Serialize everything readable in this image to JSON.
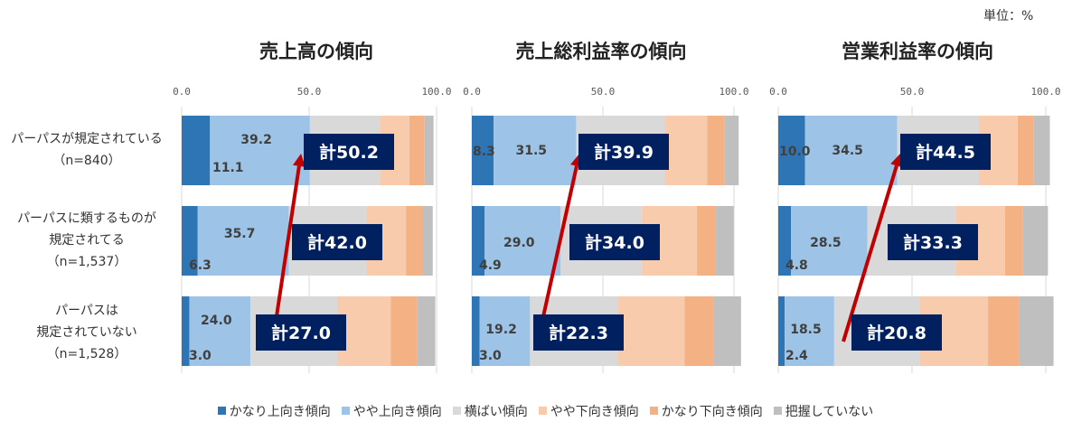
{
  "unit_label": "単位：%",
  "row_labels": [
    [
      "パーパスが規定されている",
      "（n=840）"
    ],
    [
      "パーパスに類するものが",
      "規定されてる",
      "（n=1,537）"
    ],
    [
      "パーパスは",
      "規定されていない",
      "（n=1,528）"
    ]
  ],
  "legend": [
    {
      "label": "かなり上向き傾向",
      "color": "#2e75b6"
    },
    {
      "label": "やや上向き傾向",
      "color": "#9dc3e6"
    },
    {
      "label": "横ばい傾向",
      "color": "#d9d9d9"
    },
    {
      "label": "やや下向き傾向",
      "color": "#f8cbad"
    },
    {
      "label": "かなり下向き傾向",
      "color": "#f4b183"
    },
    {
      "label": "把握していない",
      "color": "#bfbfbf"
    }
  ],
  "colors": {
    "total_box": "#002060",
    "arrow": "#c00000"
  },
  "chart_data": [
    {
      "type": "bar",
      "stacked": true,
      "orientation": "horizontal",
      "title": "売上高の傾向",
      "xlim": [
        0,
        100
      ],
      "xticks": [
        "0.0",
        "50.0",
        "100.0"
      ],
      "grid": true,
      "series": [
        {
          "name": "かなり上向き傾向",
          "values": [
            11.1,
            6.3,
            3.0
          ]
        },
        {
          "name": "やや上向き傾向",
          "values": [
            39.2,
            35.7,
            24.0
          ]
        },
        {
          "name": "横ばい傾向",
          "values": [
            27.5,
            30.5,
            34.0
          ]
        },
        {
          "name": "やや下向き傾向",
          "values": [
            11.5,
            15.5,
            21.0
          ]
        },
        {
          "name": "かなり下向き傾向",
          "values": [
            6.0,
            6.5,
            10.5
          ]
        },
        {
          "name": "把握していない",
          "values": [
            3.5,
            4.0,
            7.0
          ]
        }
      ],
      "labeled": [
        {
          "series": "かなり上向き傾向",
          "labels": [
            "11.1",
            "6.3",
            "3.0"
          ]
        },
        {
          "series": "やや上向き傾向",
          "labels": [
            "39.2",
            "35.7",
            "24.0"
          ]
        }
      ],
      "totals": [
        "計50.2",
        "計42.0",
        "計27.0"
      ]
    },
    {
      "type": "bar",
      "stacked": true,
      "orientation": "horizontal",
      "title": "売上総利益率の傾向",
      "xlim": [
        0,
        100
      ],
      "xticks": [
        "0.0",
        "50.0",
        "100.0"
      ],
      "grid": true,
      "series": [
        {
          "name": "かなり上向き傾向",
          "values": [
            8.3,
            4.9,
            3.0
          ]
        },
        {
          "name": "やや上向き傾向",
          "values": [
            31.5,
            29.0,
            19.2
          ]
        },
        {
          "name": "横ばい傾向",
          "values": [
            34.0,
            31.0,
            33.5
          ]
        },
        {
          "name": "やや下向き傾向",
          "values": [
            16.0,
            21.0,
            25.5
          ]
        },
        {
          "name": "かなり下向き傾向",
          "values": [
            6.5,
            7.0,
            11.0
          ]
        },
        {
          "name": "把握していない",
          "values": [
            5.5,
            7.0,
            10.5
          ]
        }
      ],
      "labeled": [
        {
          "series": "かなり上向き傾向",
          "labels": [
            "8.3",
            "4.9",
            "3.0"
          ]
        },
        {
          "series": "やや上向き傾向",
          "labels": [
            "31.5",
            "29.0",
            "19.2"
          ]
        }
      ],
      "totals": [
        "計39.9",
        "計34.0",
        "計22.3"
      ]
    },
    {
      "type": "bar",
      "stacked": true,
      "orientation": "horizontal",
      "title": "営業利益率の傾向",
      "xlim": [
        0,
        100
      ],
      "xticks": [
        "0.0",
        "50.0",
        "100.0"
      ],
      "grid": true,
      "series": [
        {
          "name": "かなり上向き傾向",
          "values": [
            10.0,
            4.8,
            2.4
          ]
        },
        {
          "name": "やや上向き傾向",
          "values": [
            34.5,
            28.5,
            18.5
          ]
        },
        {
          "name": "横ばい傾向",
          "values": [
            30.5,
            33.0,
            32.0
          ]
        },
        {
          "name": "やや下向き傾向",
          "values": [
            14.5,
            18.5,
            25.5
          ]
        },
        {
          "name": "かなり下向き傾向",
          "values": [
            6.0,
            6.5,
            11.5
          ]
        },
        {
          "name": "把握していない",
          "values": [
            6.0,
            9.5,
            13.0
          ]
        }
      ],
      "labeled": [
        {
          "series": "かなり上向き傾向",
          "labels": [
            "10.0",
            "4.8",
            "2.4"
          ]
        },
        {
          "series": "やや上向き傾向",
          "labels": [
            "34.5",
            "28.5",
            "18.5"
          ]
        }
      ],
      "totals": [
        "計44.5",
        "計33.3",
        "計20.8"
      ]
    }
  ]
}
